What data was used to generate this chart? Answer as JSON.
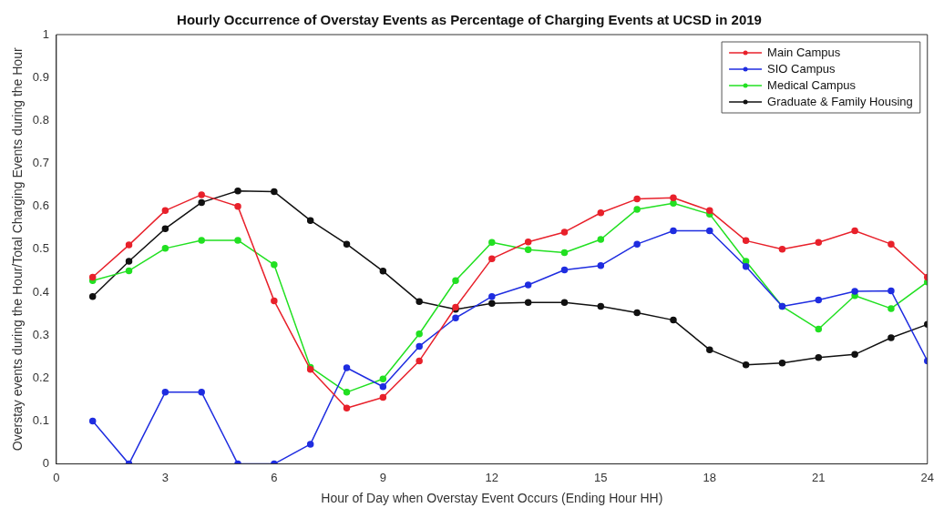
{
  "chart_data": {
    "type": "line",
    "title": "Hourly Occurrence of Overstay Events as Percentage of Charging Events at UCSD in 2019",
    "xlabel": "Hour of Day when Overstay Event Occurs (Ending Hour HH)",
    "ylabel": "Overstay events during the Hour/Total Charging Events during the Hour",
    "x": [
      1,
      2,
      3,
      4,
      5,
      6,
      7,
      8,
      9,
      10,
      11,
      12,
      13,
      14,
      15,
      16,
      17,
      18,
      19,
      20,
      21,
      22,
      23,
      24
    ],
    "series": [
      {
        "name": "Main Campus",
        "color": "#e8212b",
        "values": [
          0.435,
          0.51,
          0.59,
          0.627,
          0.6,
          0.38,
          0.22,
          0.13,
          0.155,
          0.24,
          0.365,
          0.478,
          0.517,
          0.54,
          0.585,
          0.617,
          0.62,
          0.59,
          0.52,
          0.5,
          0.516,
          0.543,
          0.512,
          0.435
        ]
      },
      {
        "name": "SIO Campus",
        "color": "#1f2de0",
        "values": [
          0.1,
          0,
          0.167,
          0.167,
          0,
          0,
          0.046,
          0.224,
          0.18,
          0.274,
          0.34,
          0.39,
          0.417,
          0.452,
          0.462,
          0.512,
          0.543,
          0.543,
          0.46,
          0.367,
          0.382,
          0.402,
          0.403,
          0.24
        ]
      },
      {
        "name": "Medical Campus",
        "color": "#22e022",
        "values": [
          0.427,
          0.45,
          0.502,
          0.521,
          0.521,
          0.464,
          0.225,
          0.167,
          0.198,
          0.303,
          0.427,
          0.516,
          0.499,
          0.492,
          0.523,
          0.593,
          0.607,
          0.582,
          0.472,
          0.367,
          0.314,
          0.392,
          0.362,
          0.424
        ]
      },
      {
        "name": "Graduate & Family Housing",
        "color": "#111111",
        "values": [
          0.39,
          0.472,
          0.548,
          0.609,
          0.636,
          0.634,
          0.567,
          0.512,
          0.449,
          0.378,
          0.36,
          0.374,
          0.376,
          0.376,
          0.367,
          0.352,
          0.335,
          0.266,
          0.231,
          0.235,
          0.248,
          0.255,
          0.294,
          0.325
        ]
      }
    ],
    "xlim": [
      0,
      24
    ],
    "xticks": [
      0,
      3,
      6,
      9,
      12,
      15,
      18,
      21,
      24
    ],
    "ylim": [
      0,
      1
    ],
    "yticks": [
      0,
      0.1,
      0.2,
      0.3,
      0.4,
      0.5,
      0.6,
      0.7,
      0.8,
      0.9,
      1
    ],
    "legend": "top right",
    "marker": "circle",
    "line_style": "solid"
  }
}
